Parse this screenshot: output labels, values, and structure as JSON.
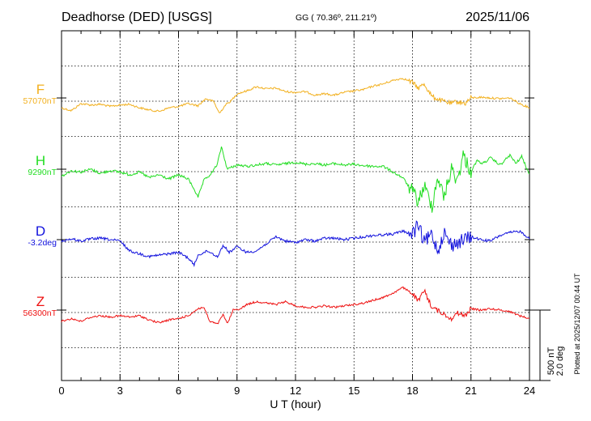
{
  "header": {
    "station": "Deadhorse (DED)  [USGS]",
    "coords": "GG ( 70.36º, 211.21º)",
    "date": "2025/11/06"
  },
  "chart_data": {
    "type": "line",
    "x_label": "U T (hour)",
    "xlim": [
      0,
      24
    ],
    "x_ticks": [
      "0",
      "3",
      "6",
      "9",
      "12",
      "15",
      "18",
      "21",
      "24"
    ],
    "grid": true,
    "scale_bar": {
      "label_1": "500 nT",
      "label_2": "2.0 deg"
    },
    "plotted_note": "Plotted at 2025/12/07 00:44 UT",
    "series": [
      {
        "name": "F",
        "baseline_label": "57070nT",
        "color": "#f2b01e",
        "name_size": 17,
        "baseline_offset_nT": 0,
        "points": [
          [
            0,
            -70
          ],
          [
            0.5,
            -90
          ],
          [
            1,
            -40
          ],
          [
            1.5,
            -50
          ],
          [
            2,
            -45
          ],
          [
            2.5,
            -60
          ],
          [
            3,
            -50
          ],
          [
            3.5,
            -45
          ],
          [
            4,
            -70
          ],
          [
            4.5,
            -85
          ],
          [
            5,
            -95
          ],
          [
            5.5,
            -70
          ],
          [
            6,
            -60
          ],
          [
            6.5,
            -40
          ],
          [
            7,
            -55
          ],
          [
            7.4,
            -5
          ],
          [
            7.8,
            -25
          ],
          [
            8.1,
            -110
          ],
          [
            8.4,
            -50
          ],
          [
            8.7,
            -20
          ],
          [
            9,
            30
          ],
          [
            9.5,
            50
          ],
          [
            10,
            80
          ],
          [
            10.5,
            65
          ],
          [
            11,
            70
          ],
          [
            11.5,
            45
          ],
          [
            12,
            40
          ],
          [
            12.5,
            45
          ],
          [
            13,
            20
          ],
          [
            13.5,
            30
          ],
          [
            14,
            20
          ],
          [
            14.5,
            40
          ],
          [
            15,
            50
          ],
          [
            15.5,
            60
          ],
          [
            16,
            85
          ],
          [
            16.5,
            100
          ],
          [
            17,
            125
          ],
          [
            17.5,
            140
          ],
          [
            18,
            110
          ],
          [
            18.3,
            70
          ],
          [
            18.6,
            100
          ],
          [
            19,
            10
          ],
          [
            19.5,
            -20
          ],
          [
            20,
            -40
          ],
          [
            20.3,
            -25
          ],
          [
            20.7,
            -40
          ],
          [
            21,
            0
          ],
          [
            21.5,
            5
          ],
          [
            22,
            0
          ],
          [
            22.5,
            -5
          ],
          [
            23,
            0
          ],
          [
            23.5,
            -40
          ],
          [
            24,
            -70
          ]
        ]
      },
      {
        "name": "H",
        "baseline_label": "9290nT",
        "color": "#22dd22",
        "name_size": 17,
        "baseline_offset_nT": 0,
        "points": [
          [
            0,
            -50
          ],
          [
            0.5,
            -10
          ],
          [
            1,
            -20
          ],
          [
            1.5,
            0
          ],
          [
            2,
            -30
          ],
          [
            2.5,
            -10
          ],
          [
            3,
            -20
          ],
          [
            3.5,
            -40
          ],
          [
            4,
            -20
          ],
          [
            4.5,
            -60
          ],
          [
            5,
            -40
          ],
          [
            5.5,
            -70
          ],
          [
            6,
            -40
          ],
          [
            6.5,
            -70
          ],
          [
            6.8,
            -140
          ],
          [
            7,
            -200
          ],
          [
            7.3,
            -80
          ],
          [
            7.7,
            -30
          ],
          [
            8,
            40
          ],
          [
            8.2,
            160
          ],
          [
            8.5,
            0
          ],
          [
            9,
            30
          ],
          [
            9.5,
            20
          ],
          [
            10,
            30
          ],
          [
            10.5,
            40
          ],
          [
            11,
            30
          ],
          [
            11.5,
            40
          ],
          [
            12,
            50
          ],
          [
            12.5,
            35
          ],
          [
            13,
            40
          ],
          [
            13.5,
            30
          ],
          [
            14,
            40
          ],
          [
            14.5,
            30
          ],
          [
            15,
            35
          ],
          [
            15.5,
            25
          ],
          [
            16,
            20
          ],
          [
            16.5,
            20
          ],
          [
            17,
            -20
          ],
          [
            17.5,
            -60
          ],
          [
            18,
            -160
          ],
          [
            18.3,
            -230
          ],
          [
            18.6,
            -120
          ],
          [
            19,
            -260
          ],
          [
            19.3,
            -50
          ],
          [
            19.6,
            -200
          ],
          [
            20,
            0
          ],
          [
            20.3,
            -80
          ],
          [
            20.6,
            100
          ],
          [
            21,
            -20
          ],
          [
            21.3,
            60
          ],
          [
            21.6,
            40
          ],
          [
            22,
            80
          ],
          [
            22.5,
            30
          ],
          [
            23,
            100
          ],
          [
            23.3,
            40
          ],
          [
            23.6,
            90
          ],
          [
            24,
            -40
          ]
        ]
      },
      {
        "name": "D",
        "baseline_label": "-3.2deg",
        "color": "#1111dd",
        "name_size": 17,
        "baseline_offset_nT": 0,
        "points": [
          [
            0,
            -10
          ],
          [
            0.5,
            5
          ],
          [
            1,
            -10
          ],
          [
            1.5,
            5
          ],
          [
            2,
            10
          ],
          [
            2.5,
            0
          ],
          [
            3,
            -10
          ],
          [
            3.5,
            -80
          ],
          [
            4,
            -100
          ],
          [
            4.5,
            -120
          ],
          [
            5,
            -110
          ],
          [
            5.5,
            -100
          ],
          [
            6,
            -90
          ],
          [
            6.5,
            -130
          ],
          [
            6.8,
            -180
          ],
          [
            7,
            -110
          ],
          [
            7.5,
            -80
          ],
          [
            8,
            -120
          ],
          [
            8.3,
            -40
          ],
          [
            8.6,
            -90
          ],
          [
            9,
            -50
          ],
          [
            9.5,
            -90
          ],
          [
            10,
            -80
          ],
          [
            10.5,
            -30
          ],
          [
            11,
            20
          ],
          [
            11.5,
            -10
          ],
          [
            12,
            -20
          ],
          [
            12.5,
            0
          ],
          [
            13,
            -10
          ],
          [
            13.5,
            10
          ],
          [
            14,
            10
          ],
          [
            14.5,
            0
          ],
          [
            15,
            10
          ],
          [
            15.5,
            20
          ],
          [
            16,
            30
          ],
          [
            16.5,
            35
          ],
          [
            17,
            40
          ],
          [
            17.5,
            60
          ],
          [
            18,
            40
          ],
          [
            18.3,
            100
          ],
          [
            18.6,
            -20
          ],
          [
            19,
            40
          ],
          [
            19.3,
            -80
          ],
          [
            19.6,
            50
          ],
          [
            20,
            -40
          ],
          [
            20.5,
            -10
          ],
          [
            21,
            20
          ],
          [
            21.5,
            0
          ],
          [
            22,
            -10
          ],
          [
            22.5,
            30
          ],
          [
            23,
            50
          ],
          [
            23.5,
            60
          ],
          [
            24,
            10
          ]
        ]
      },
      {
        "name": "Z",
        "baseline_label": "56300nT",
        "color": "#ee1111",
        "name_size": 17,
        "baseline_offset_nT": 0,
        "points": [
          [
            0,
            -80
          ],
          [
            0.5,
            -60
          ],
          [
            1,
            -80
          ],
          [
            1.5,
            -50
          ],
          [
            2,
            -40
          ],
          [
            2.5,
            -50
          ],
          [
            3,
            -40
          ],
          [
            3.5,
            -50
          ],
          [
            4,
            -40
          ],
          [
            4.5,
            -70
          ],
          [
            5,
            -90
          ],
          [
            5.5,
            -70
          ],
          [
            6,
            -60
          ],
          [
            6.5,
            -40
          ],
          [
            7,
            10
          ],
          [
            7.3,
            20
          ],
          [
            7.6,
            -80
          ],
          [
            8,
            -100
          ],
          [
            8.3,
            -30
          ],
          [
            8.5,
            -100
          ],
          [
            8.8,
            0
          ],
          [
            9.2,
            10
          ],
          [
            9.5,
            40
          ],
          [
            10,
            60
          ],
          [
            10.5,
            50
          ],
          [
            11,
            40
          ],
          [
            11.5,
            60
          ],
          [
            12,
            30
          ],
          [
            12.5,
            20
          ],
          [
            13,
            20
          ],
          [
            13.5,
            30
          ],
          [
            14,
            20
          ],
          [
            14.5,
            30
          ],
          [
            15,
            40
          ],
          [
            15.5,
            50
          ],
          [
            16,
            70
          ],
          [
            16.5,
            90
          ],
          [
            17,
            120
          ],
          [
            17.5,
            160
          ],
          [
            18,
            120
          ],
          [
            18.3,
            60
          ],
          [
            18.6,
            140
          ],
          [
            19,
            20
          ],
          [
            19.5,
            -20
          ],
          [
            20,
            -60
          ],
          [
            20.3,
            -20
          ],
          [
            20.7,
            -40
          ],
          [
            21,
            10
          ],
          [
            21.5,
            0
          ],
          [
            22,
            10
          ],
          [
            22.5,
            0
          ],
          [
            23,
            -10
          ],
          [
            23.5,
            -40
          ],
          [
            24,
            -60
          ]
        ]
      }
    ]
  }
}
